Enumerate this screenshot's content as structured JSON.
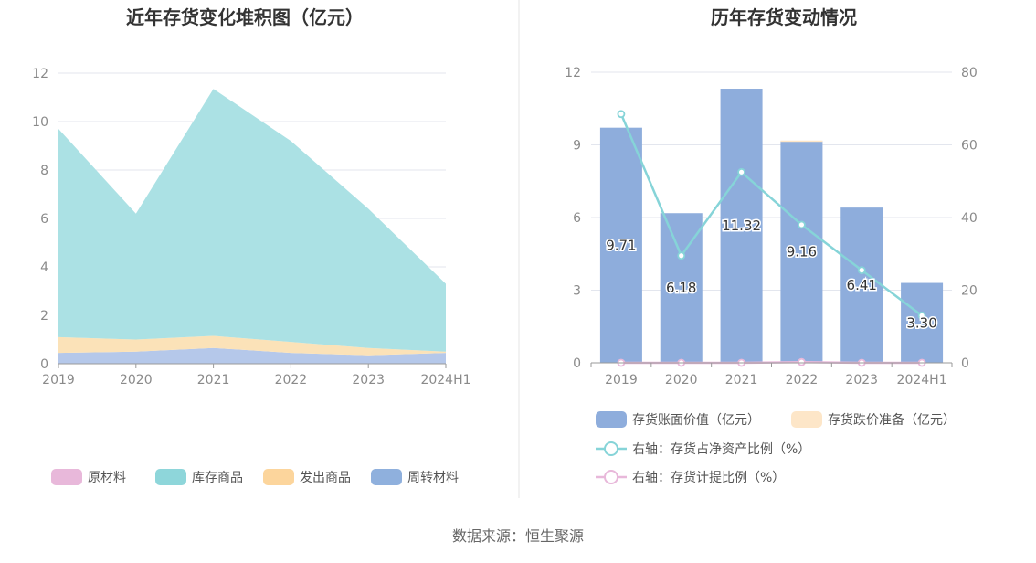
{
  "source_text": "数据来源：恒生聚源",
  "chart_data": [
    {
      "type": "area",
      "stacked": true,
      "title": "近年存货变化堆积图（亿元）",
      "categories": [
        "2019",
        "2020",
        "2021",
        "2022",
        "2023",
        "2024H1"
      ],
      "ylim": [
        0,
        12
      ],
      "yticks": [
        0,
        2,
        4,
        6,
        8,
        10,
        12
      ],
      "ytick_labels": [
        "0",
        "2",
        "4",
        "6",
        "8",
        "10",
        "12"
      ],
      "grid": true,
      "legend_position": "bottom",
      "series": [
        {
          "name": "原材料",
          "color": "#e8b8da",
          "legend_color": "#e8b8da",
          "values": [
            0.0,
            0.0,
            0.0,
            0.0,
            0.0,
            0.0
          ]
        },
        {
          "name": "周转材料",
          "color": "#b5c8ea",
          "legend_color": "#8fb0dd",
          "values": [
            0.45,
            0.5,
            0.65,
            0.45,
            0.35,
            0.45
          ]
        },
        {
          "name": "发出商品",
          "color": "#fbe2b8",
          "legend_color": "#fcd59c",
          "values": [
            0.65,
            0.5,
            0.5,
            0.45,
            0.3,
            0.05
          ]
        },
        {
          "name": "库存商品",
          "color": "#abe1e4",
          "legend_color": "#8ed6da",
          "values": [
            8.6,
            5.2,
            10.2,
            8.3,
            5.75,
            2.8
          ]
        }
      ],
      "legend_order": [
        "原材料",
        "库存商品",
        "发出商品",
        "周转材料"
      ]
    },
    {
      "type": "bar",
      "title": "历年存货变动情况",
      "categories": [
        "2019",
        "2020",
        "2021",
        "2022",
        "2023",
        "2024H1"
      ],
      "ylim_left": [
        0,
        12
      ],
      "yticks_left": [
        0,
        3,
        6,
        9,
        12
      ],
      "ytick_labels_left": [
        "0",
        "3",
        "6",
        "9",
        "12"
      ],
      "ylim_right": [
        0,
        80
      ],
      "yticks_right": [
        0,
        20,
        40,
        60,
        80
      ],
      "ytick_labels_right": [
        "0",
        "20",
        "40",
        "60",
        "80"
      ],
      "grid": true,
      "legend_position": "bottom",
      "bars": [
        {
          "name": "存货账面价值（亿元）",
          "color": "#8eaddc",
          "values": [
            9.71,
            6.18,
            11.32,
            9.16,
            6.41,
            3.3
          ],
          "labels": [
            "9.71",
            "6.18",
            "11.32",
            "9.16",
            "6.41",
            "3.30"
          ]
        },
        {
          "name": "存货跌价准备（亿元）",
          "color": "#fde6c8",
          "values": [
            0.0,
            0.0,
            0.0,
            0.02,
            0.0,
            0.0
          ]
        }
      ],
      "lines": [
        {
          "name": "右轴：存货占净资产比例（%）",
          "color": "#86d4d8",
          "axis": "right",
          "values": [
            68.5,
            29.5,
            52.5,
            38.0,
            25.5,
            13.0
          ]
        },
        {
          "name": "右轴：存货计提比例（%）",
          "color": "#e8b8da",
          "axis": "right",
          "values": [
            0.0,
            0.0,
            0.0,
            0.2,
            0.0,
            0.0
          ]
        }
      ]
    }
  ]
}
